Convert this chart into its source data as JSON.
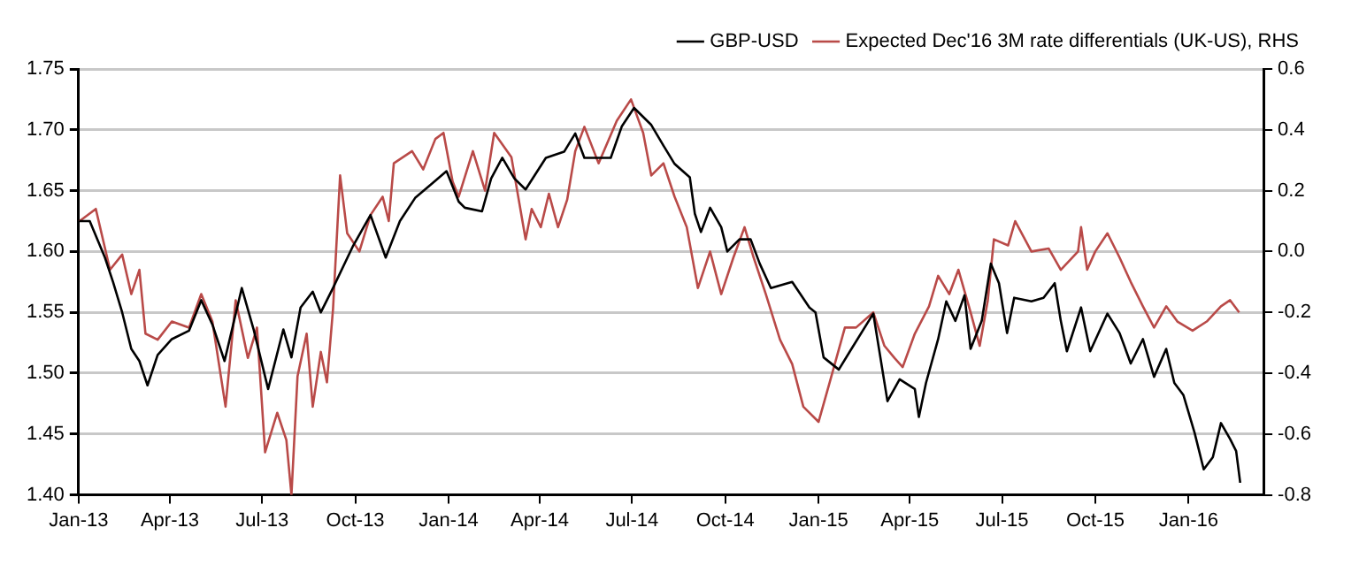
{
  "chart_data": {
    "type": "line",
    "xlim": [
      "2013-01-01",
      "2016-03-15"
    ],
    "xticks": [
      {
        "value": "2013-01-01",
        "label": "Jan-13"
      },
      {
        "value": "2013-04-01",
        "label": "Apr-13"
      },
      {
        "value": "2013-07-01",
        "label": "Jul-13"
      },
      {
        "value": "2013-10-01",
        "label": "Oct-13"
      },
      {
        "value": "2014-01-01",
        "label": "Jan-14"
      },
      {
        "value": "2014-04-01",
        "label": "Apr-14"
      },
      {
        "value": "2014-07-01",
        "label": "Jul-14"
      },
      {
        "value": "2014-10-01",
        "label": "Oct-14"
      },
      {
        "value": "2015-01-01",
        "label": "Jan-15"
      },
      {
        "value": "2015-04-01",
        "label": "Apr-15"
      },
      {
        "value": "2015-07-01",
        "label": "Jul-15"
      },
      {
        "value": "2015-10-01",
        "label": "Oct-15"
      },
      {
        "value": "2016-01-01",
        "label": "Jan-16"
      }
    ],
    "ylim": [
      1.4,
      1.75
    ],
    "yticks": [
      {
        "value": 1.4,
        "label": "1.40"
      },
      {
        "value": 1.45,
        "label": "1.45"
      },
      {
        "value": 1.5,
        "label": "1.50"
      },
      {
        "value": 1.55,
        "label": "1.55"
      },
      {
        "value": 1.6,
        "label": "1.60"
      },
      {
        "value": 1.65,
        "label": "1.65"
      },
      {
        "value": 1.7,
        "label": "1.70"
      },
      {
        "value": 1.75,
        "label": "1.75"
      }
    ],
    "y2lim": [
      -0.8,
      0.6
    ],
    "y2ticks": [
      -0.8,
      -0.6,
      -0.4,
      -0.2,
      {
        "value": 0,
        "label": "0.0"
      },
      0.2,
      0.4,
      0.6
    ],
    "grid": "y",
    "legend": "top",
    "marker": "none",
    "line_style": "solid",
    "series": [
      {
        "name": "GBP-USD",
        "color": "#000000",
        "x": [
          "2013-01-02",
          "2013-01-12",
          "2013-01-27",
          "2013-02-04",
          "2013-02-13",
          "2013-02-22",
          "2013-03-02",
          "2013-03-10",
          "2013-03-20",
          "2013-04-03",
          "2013-04-20",
          "2013-05-02",
          "2013-05-13",
          "2013-05-25",
          "2013-06-11",
          "2013-06-23",
          "2013-07-07",
          "2013-07-22",
          "2013-07-30",
          "2013-08-08",
          "2013-08-20",
          "2013-08-28",
          "2013-09-09",
          "2013-09-29",
          "2013-10-16",
          "2013-10-31",
          "2013-11-14",
          "2013-11-29",
          "2013-12-16",
          "2013-12-30",
          "2014-01-11",
          "2014-01-17",
          "2014-02-03",
          "2014-02-12",
          "2014-02-23",
          "2014-03-07",
          "2014-03-18",
          "2014-04-07",
          "2014-04-25",
          "2014-05-06",
          "2014-05-15",
          "2014-05-29",
          "2014-06-10",
          "2014-06-21",
          "2014-07-03",
          "2014-07-20",
          "2014-08-01",
          "2014-08-12",
          "2014-08-27",
          "2014-09-01",
          "2014-09-07",
          "2014-09-16",
          "2014-09-27",
          "2014-10-03",
          "2014-10-15",
          "2014-10-26",
          "2014-11-04",
          "2014-11-15",
          "2014-12-06",
          "2014-12-23",
          "2014-12-29",
          "2015-01-06",
          "2015-01-21",
          "2015-02-01",
          "2015-02-24",
          "2015-03-10",
          "2015-03-22",
          "2015-04-06",
          "2015-04-10",
          "2015-04-17",
          "2015-04-29",
          "2015-05-07",
          "2015-05-16",
          "2015-05-25",
          "2015-05-31",
          "2015-06-11",
          "2015-06-20",
          "2015-06-28",
          "2015-07-06",
          "2015-07-13",
          "2015-07-30",
          "2015-08-11",
          "2015-08-22",
          "2015-08-28",
          "2015-09-03",
          "2015-09-17",
          "2015-09-26",
          "2015-10-13",
          "2015-10-25",
          "2015-11-05",
          "2015-11-17",
          "2015-11-28",
          "2015-12-10",
          "2015-12-18",
          "2015-12-27",
          "2016-01-07",
          "2016-01-16",
          "2016-01-25",
          "2016-02-02",
          "2016-02-11",
          "2016-02-17",
          "2016-02-21"
        ],
        "values": [
          1.625,
          1.625,
          1.595,
          1.575,
          1.55,
          1.52,
          1.51,
          1.49,
          1.515,
          1.528,
          1.535,
          1.56,
          1.54,
          1.51,
          1.57,
          1.535,
          1.487,
          1.536,
          1.513,
          1.554,
          1.567,
          1.55,
          1.57,
          1.605,
          1.63,
          1.595,
          1.625,
          1.644,
          1.656,
          1.666,
          1.641,
          1.636,
          1.633,
          1.66,
          1.677,
          1.66,
          1.651,
          1.677,
          1.682,
          1.697,
          1.677,
          1.677,
          1.677,
          1.703,
          1.718,
          1.704,
          1.687,
          1.672,
          1.661,
          1.631,
          1.616,
          1.636,
          1.62,
          1.6,
          1.61,
          1.61,
          1.59,
          1.57,
          1.575,
          1.554,
          1.55,
          1.513,
          1.503,
          1.518,
          1.549,
          1.477,
          1.495,
          1.487,
          1.464,
          1.492,
          1.528,
          1.559,
          1.543,
          1.564,
          1.52,
          1.543,
          1.59,
          1.574,
          1.533,
          1.562,
          1.559,
          1.562,
          1.574,
          1.543,
          1.518,
          1.554,
          1.518,
          1.549,
          1.533,
          1.508,
          1.528,
          1.497,
          1.52,
          1.492,
          1.482,
          1.451,
          1.421,
          1.431,
          1.459,
          1.446,
          1.436,
          1.41
        ]
      },
      {
        "name": "Expected Dec'16 3M rate differentials (UK-US), RHS",
        "color": "#b94a48",
        "axis": "y2",
        "x": [
          "2013-01-02",
          "2013-01-18",
          "2013-02-01",
          "2013-02-13",
          "2013-02-22",
          "2013-03-02",
          "2013-03-08",
          "2013-03-20",
          "2013-04-03",
          "2013-04-20",
          "2013-05-02",
          "2013-05-13",
          "2013-05-26",
          "2013-06-05",
          "2013-06-17",
          "2013-06-26",
          "2013-07-04",
          "2013-07-16",
          "2013-07-25",
          "2013-07-30",
          "2013-08-05",
          "2013-08-14",
          "2013-08-20",
          "2013-08-28",
          "2013-09-03",
          "2013-09-09",
          "2013-09-16",
          "2013-09-23",
          "2013-10-05",
          "2013-10-16",
          "2013-10-28",
          "2013-11-03",
          "2013-11-08",
          "2013-11-26",
          "2013-12-07",
          "2013-12-19",
          "2013-12-27",
          "2014-01-05",
          "2014-01-11",
          "2014-01-25",
          "2014-02-06",
          "2014-02-15",
          "2014-03-04",
          "2014-03-18",
          "2014-03-24",
          "2014-04-02",
          "2014-04-10",
          "2014-04-19",
          "2014-04-28",
          "2014-05-06",
          "2014-05-15",
          "2014-05-29",
          "2014-06-16",
          "2014-06-30",
          "2014-07-12",
          "2014-07-20",
          "2014-08-01",
          "2014-08-12",
          "2014-08-24",
          "2014-09-04",
          "2014-09-16",
          "2014-09-27",
          "2014-10-09",
          "2014-10-20",
          "2014-10-29",
          "2014-11-10",
          "2014-11-24",
          "2014-12-06",
          "2014-12-17",
          "2015-01-01",
          "2015-01-12",
          "2015-01-27",
          "2015-02-07",
          "2015-02-24",
          "2015-03-07",
          "2015-03-17",
          "2015-03-25",
          "2015-04-06",
          "2015-04-20",
          "2015-04-29",
          "2015-05-10",
          "2015-05-19",
          "2015-05-31",
          "2015-06-09",
          "2015-06-17",
          "2015-06-23",
          "2015-07-07",
          "2015-07-14",
          "2015-07-30",
          "2015-08-16",
          "2015-08-28",
          "2015-09-14",
          "2015-09-17",
          "2015-09-23",
          "2015-10-01",
          "2015-10-13",
          "2015-10-25",
          "2015-11-05",
          "2015-11-17",
          "2015-11-28",
          "2015-12-10",
          "2015-12-21",
          "2016-01-05",
          "2016-01-19",
          "2016-02-02",
          "2016-02-11",
          "2016-02-20"
        ],
        "values": [
          0.1,
          0.14,
          -0.06,
          -0.01,
          -0.14,
          -0.06,
          -0.27,
          -0.29,
          -0.23,
          -0.25,
          -0.14,
          -0.23,
          -0.51,
          -0.16,
          -0.35,
          -0.25,
          -0.66,
          -0.53,
          -0.62,
          -0.8,
          -0.41,
          -0.27,
          -0.51,
          -0.33,
          -0.43,
          -0.19,
          0.25,
          0.06,
          0,
          0.12,
          0.18,
          0.1,
          0.29,
          0.33,
          0.27,
          0.37,
          0.39,
          0.23,
          0.18,
          0.33,
          0.2,
          0.39,
          0.31,
          0.04,
          0.14,
          0.08,
          0.19,
          0.08,
          0.17,
          0.33,
          0.41,
          0.29,
          0.43,
          0.5,
          0.39,
          0.25,
          0.29,
          0.18,
          0.08,
          -0.12,
          0,
          -0.14,
          -0.02,
          0.08,
          -0.02,
          -0.14,
          -0.29,
          -0.37,
          -0.51,
          -0.56,
          -0.43,
          -0.25,
          -0.25,
          -0.2,
          -0.31,
          -0.35,
          -0.38,
          -0.27,
          -0.18,
          -0.08,
          -0.14,
          -0.06,
          -0.2,
          -0.31,
          -0.16,
          0.04,
          0.02,
          0.1,
          0,
          0.01,
          -0.06,
          0,
          0.08,
          -0.06,
          0,
          0.06,
          -0.02,
          -0.1,
          -0.18,
          -0.25,
          -0.18,
          -0.23,
          -0.26,
          -0.23,
          -0.18,
          -0.16,
          -0.2
        ]
      }
    ]
  }
}
